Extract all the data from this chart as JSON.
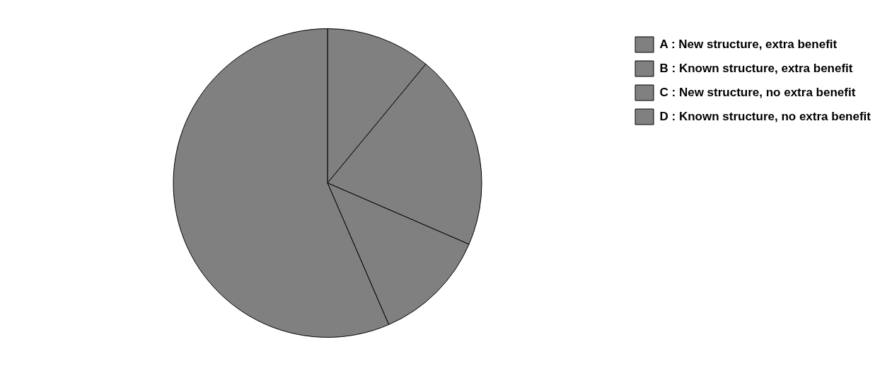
{
  "chart_data": {
    "type": "pie",
    "categories": [
      "A : New structure, extra benefit",
      "B : Known structure, extra benefit",
      "C : New structure, no extra benefit",
      "D : Known structure, no extra benefit"
    ],
    "values": [
      11,
      20.5,
      12,
      56.5
    ],
    "colors": [
      "#808080",
      "#808080",
      "#808080",
      "#808080"
    ],
    "legend": "top right"
  }
}
